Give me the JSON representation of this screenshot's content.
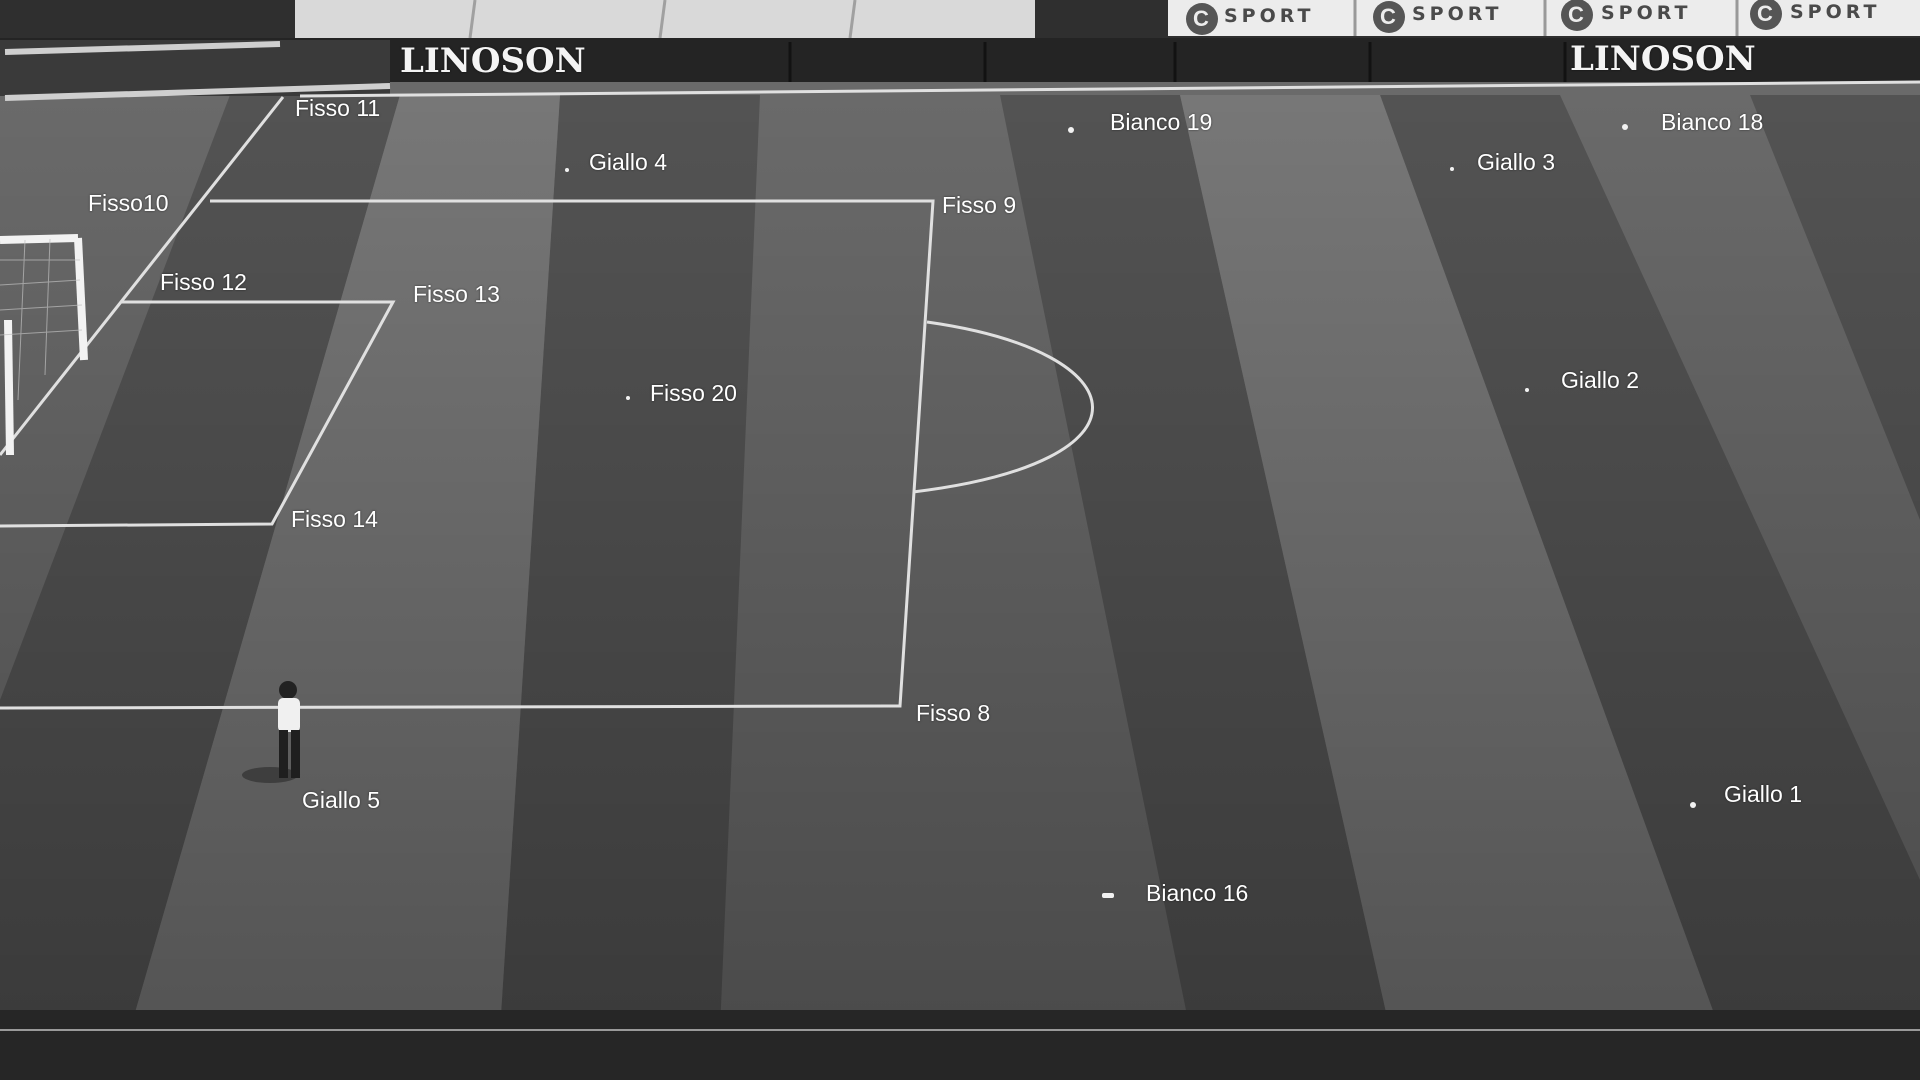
{
  "scene": {
    "type": "stadium-pitch-camera-view",
    "colors": {
      "grass_light": "#757575",
      "grass_dark": "#595959",
      "lines": "#e6e6e6",
      "marker": "#f2f2f2",
      "label": "#ffffff"
    }
  },
  "ads": {
    "linoson_text": "LINOSON",
    "sport_text": "SPORT",
    "sport_logo_letter": "C"
  },
  "markers": [
    {
      "id": "fisso-11",
      "label": "Fisso 11"
    },
    {
      "id": "bianco-19",
      "label": "Bianco 19"
    },
    {
      "id": "bianco-18",
      "label": "Bianco 18"
    },
    {
      "id": "giallo-4",
      "label": "Giallo 4"
    },
    {
      "id": "giallo-3",
      "label": "Giallo 3"
    },
    {
      "id": "fisso-10",
      "label": "Fisso10"
    },
    {
      "id": "fisso-9",
      "label": "Fisso 9"
    },
    {
      "id": "fisso-12",
      "label": "Fisso 12"
    },
    {
      "id": "fisso-13",
      "label": "Fisso 13"
    },
    {
      "id": "giallo-2",
      "label": "Giallo 2"
    },
    {
      "id": "fisso-20",
      "label": "Fisso 20"
    },
    {
      "id": "fisso-14",
      "label": "Fisso 14"
    },
    {
      "id": "fisso-8",
      "label": "Fisso 8"
    },
    {
      "id": "giallo-1",
      "label": "Giallo 1"
    },
    {
      "id": "giallo-5",
      "label": "Giallo 5"
    },
    {
      "id": "bianco-16",
      "label": "Bianco 16"
    }
  ]
}
